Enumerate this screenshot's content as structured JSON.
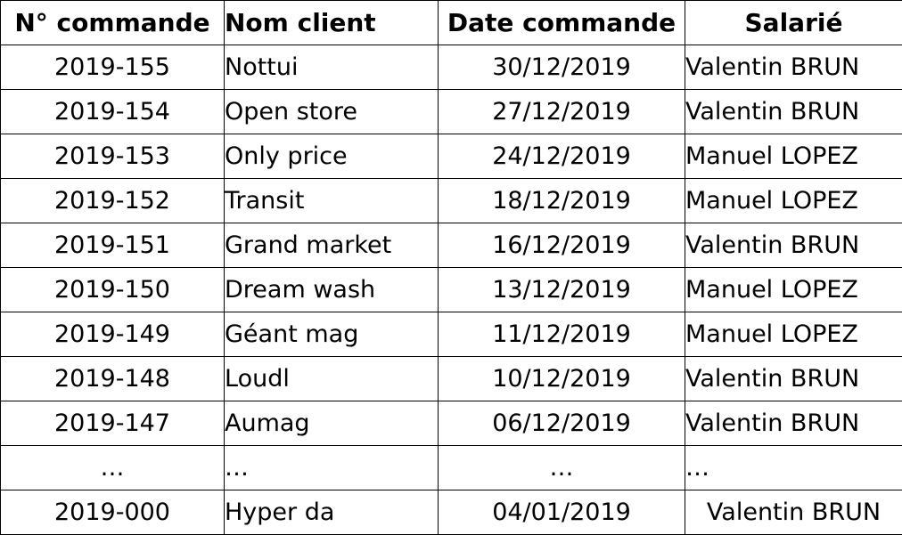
{
  "table": {
    "headers": [
      "N° commande",
      "Nom client",
      "Date commande",
      "Salarié"
    ],
    "rows": [
      [
        "2019-155",
        "Nottui",
        "30/12/2019",
        "Valentin BRUN"
      ],
      [
        "2019-154",
        "Open store",
        "27/12/2019",
        "Valentin BRUN"
      ],
      [
        "2019-153",
        "Only price",
        "24/12/2019",
        "Manuel LOPEZ"
      ],
      [
        "2019-152",
        "Transit",
        "18/12/2019",
        "Manuel LOPEZ"
      ],
      [
        "2019-151",
        "Grand market",
        "16/12/2019",
        "Valentin BRUN"
      ],
      [
        "2019-150",
        "Dream wash",
        "13/12/2019",
        "Manuel LOPEZ"
      ],
      [
        "2019-149",
        "Géant mag",
        "11/12/2019",
        "Manuel LOPEZ"
      ],
      [
        "2019-148",
        "Loudl",
        "10/12/2019",
        "Valentin BRUN"
      ],
      [
        "2019-147",
        "Aumag",
        "06/12/2019",
        "Valentin BRUN"
      ],
      [
        "…",
        "…",
        "…",
        "…"
      ],
      [
        "2019-000",
        "Hyper da",
        "04/01/2019",
        "Valentin BRUN"
      ]
    ]
  }
}
